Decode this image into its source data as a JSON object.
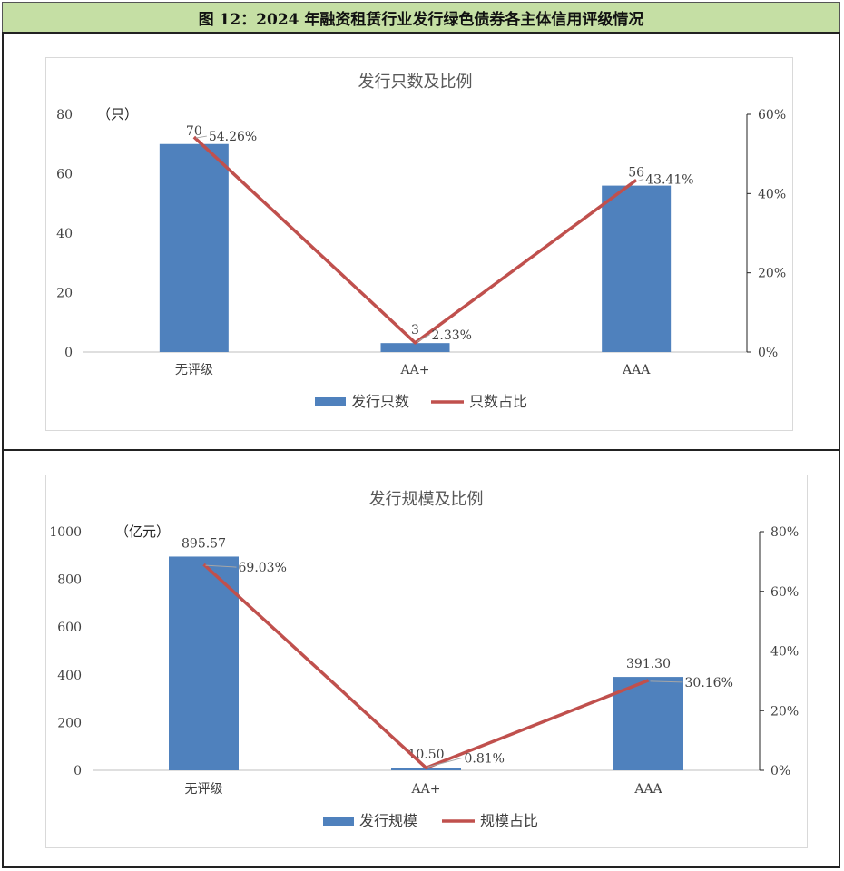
{
  "title": "图 12：2024 年融资租赁行业发行绿色债券各主体信用评级情况",
  "chart_data": [
    {
      "type": "bar",
      "title": "发行只数及比例",
      "unit_label": "（只）",
      "categories": [
        "无评级",
        "AA+",
        "AAA"
      ],
      "series": [
        {
          "name": "发行只数",
          "type": "bar",
          "axis": "left",
          "color": "#4f81bd",
          "values": [
            70,
            3,
            56
          ],
          "labels": [
            "70",
            "3",
            "56"
          ]
        },
        {
          "name": "只数占比",
          "type": "line",
          "axis": "right",
          "color": "#c0504d",
          "values": [
            54.26,
            2.33,
            43.41
          ],
          "labels": [
            "54.26%",
            "2.33%",
            "43.41%"
          ]
        }
      ],
      "ylim": [
        0,
        80
      ],
      "yticks": [
        0,
        20,
        40,
        60,
        80
      ],
      "y2lim": [
        0,
        60
      ],
      "y2ticks": [
        "0%",
        "20%",
        "40%",
        "60%"
      ],
      "grid": false,
      "legend": "bottom"
    },
    {
      "type": "bar",
      "title": "发行规模及比例",
      "unit_label": "（亿元）",
      "categories": [
        "无评级",
        "AA+",
        "AAA"
      ],
      "series": [
        {
          "name": "发行规模",
          "type": "bar",
          "axis": "left",
          "color": "#4f81bd",
          "values": [
            895.57,
            10.5,
            391.3
          ],
          "labels": [
            "895.57",
            "10.50",
            "391.30"
          ]
        },
        {
          "name": "规模占比",
          "type": "line",
          "axis": "right",
          "color": "#c0504d",
          "values": [
            69.03,
            0.81,
            30.16
          ],
          "labels": [
            "69.03%",
            "0.81%",
            "30.16%"
          ]
        }
      ],
      "ylim": [
        0,
        1000
      ],
      "yticks": [
        0,
        200,
        400,
        600,
        800,
        1000
      ],
      "y2lim": [
        0,
        80
      ],
      "y2ticks": [
        "0%",
        "20%",
        "40%",
        "60%",
        "80%"
      ],
      "grid": false,
      "legend": "bottom"
    }
  ]
}
